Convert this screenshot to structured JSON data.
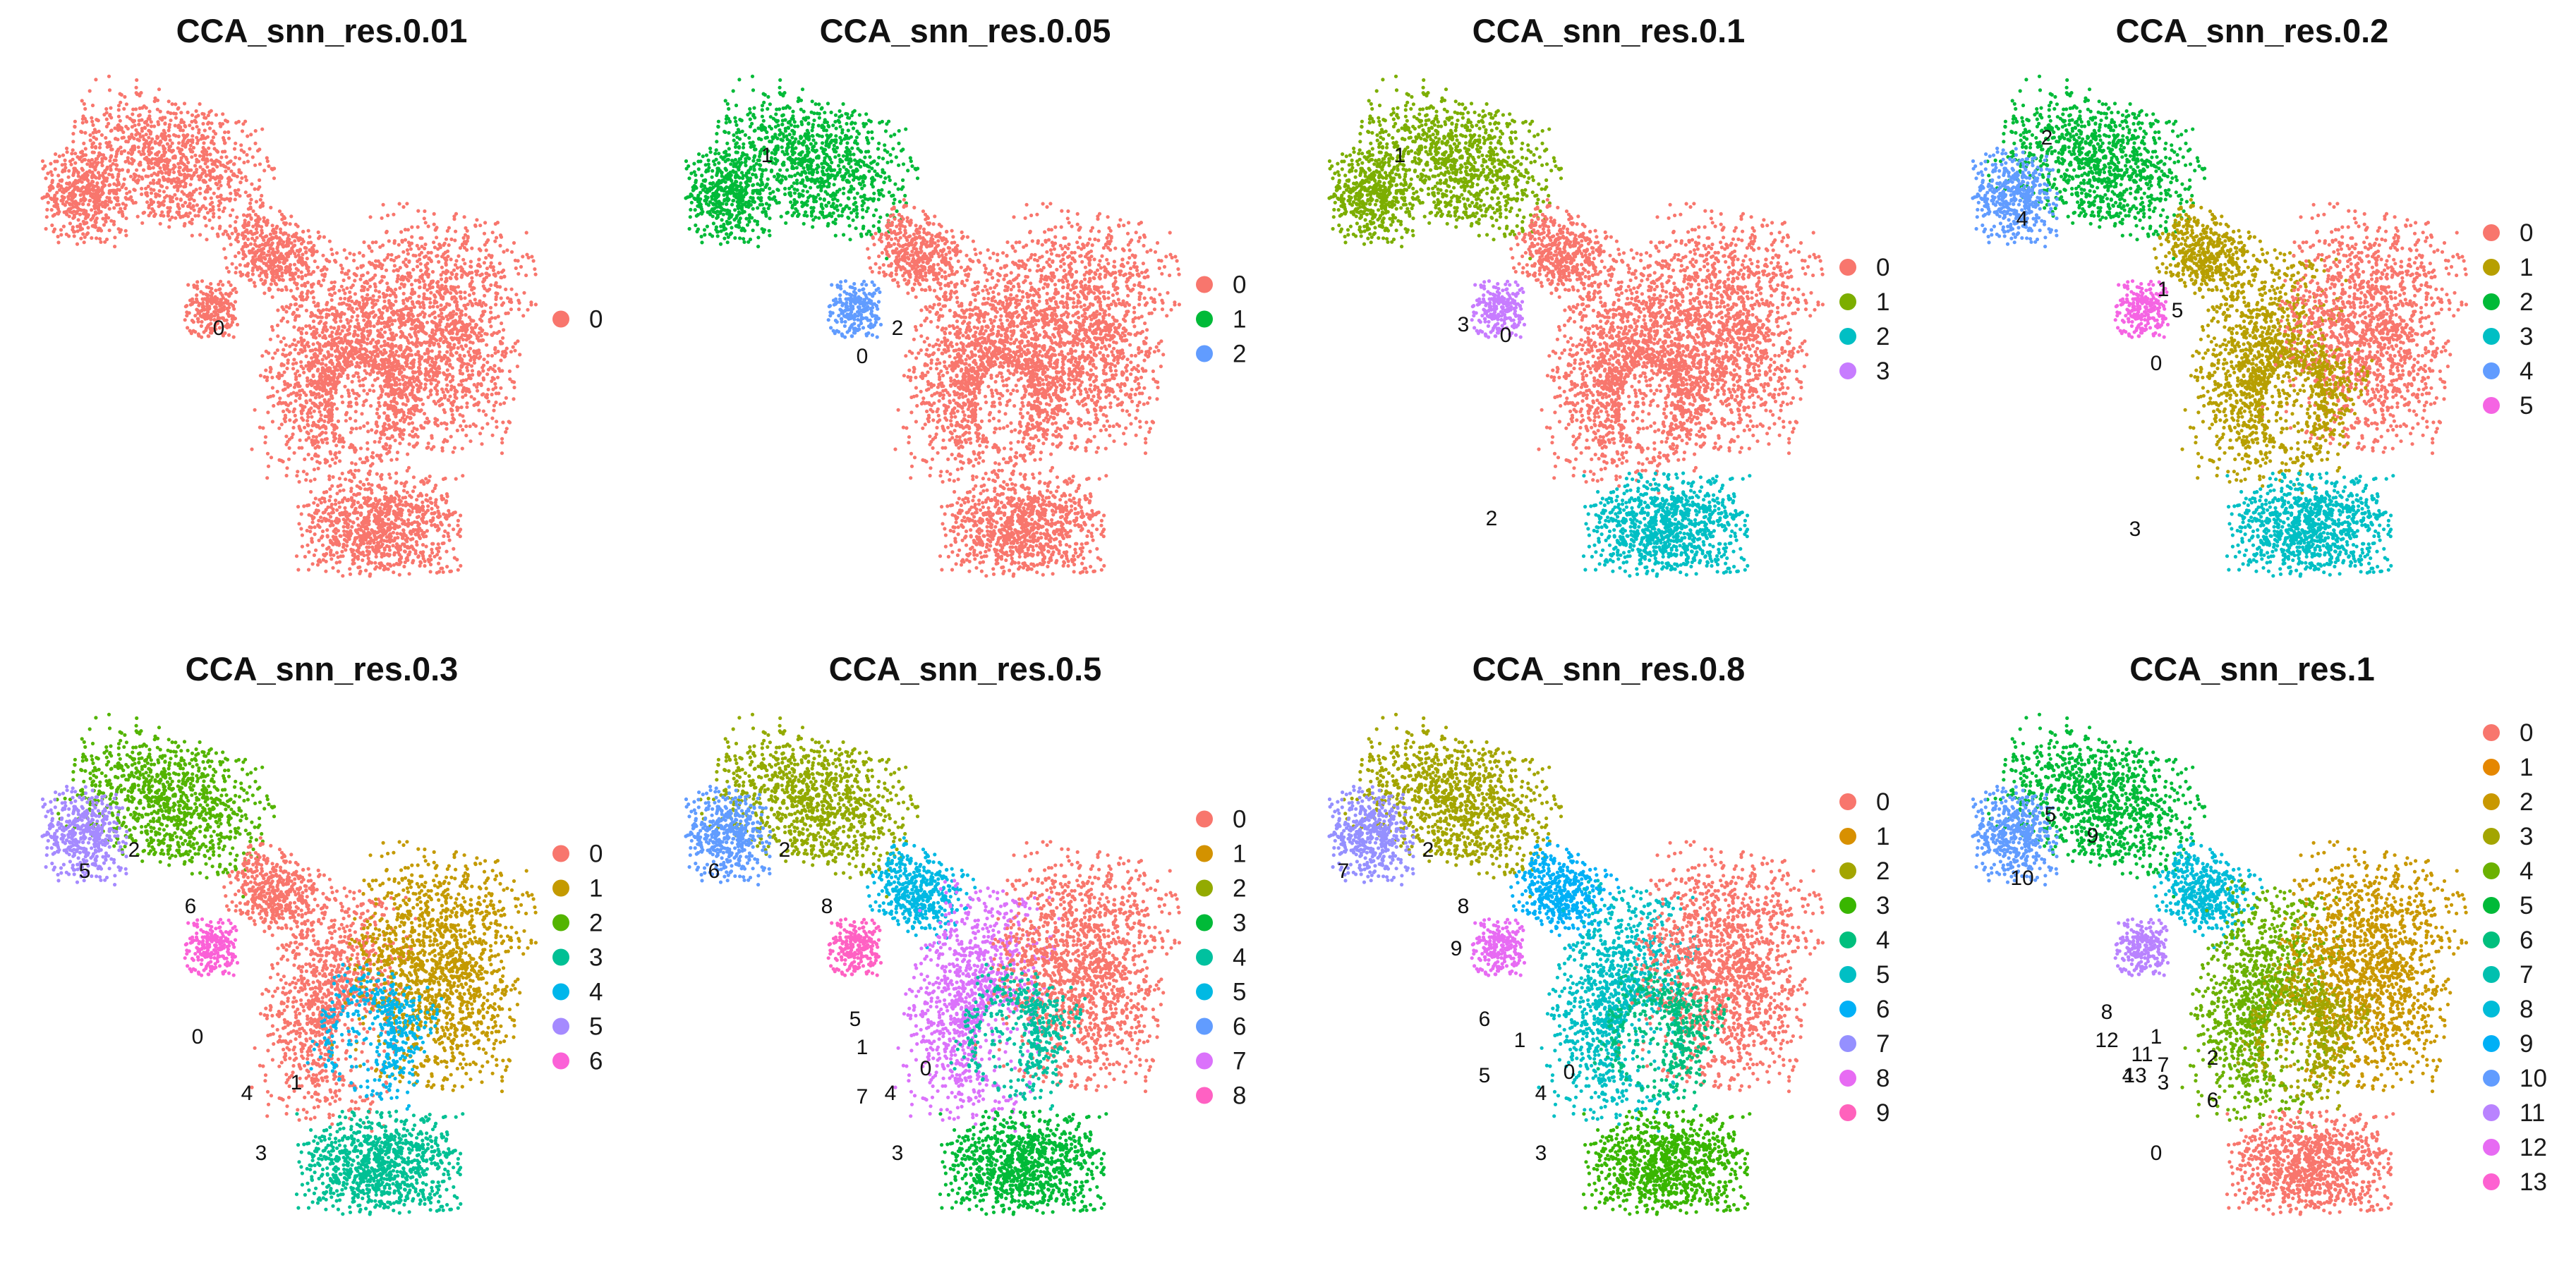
{
  "figure": {
    "layout": "2x4 grid of UMAP cluster plots"
  },
  "chart_data": [
    {
      "type": "scatter",
      "title": "CCA_snn_res.0.01",
      "legend": {
        "position": "right",
        "entries": [
          "0"
        ]
      },
      "cluster_labels": [
        "0"
      ],
      "colors": [
        "#F8766D"
      ]
    },
    {
      "type": "scatter",
      "title": "CCA_snn_res.0.05",
      "legend": {
        "position": "right",
        "entries": [
          "0",
          "1",
          "2"
        ]
      },
      "cluster_labels": [
        "0",
        "1",
        "2"
      ],
      "colors": [
        "#F8766D",
        "#00BA38",
        "#619CFF"
      ]
    },
    {
      "type": "scatter",
      "title": "CCA_snn_res.0.1",
      "legend": {
        "position": "right",
        "entries": [
          "0",
          "1",
          "2",
          "3"
        ]
      },
      "cluster_labels": [
        "0",
        "1",
        "2",
        "3"
      ],
      "colors": [
        "#F8766D",
        "#7CAE00",
        "#00BFC4",
        "#C77CFF"
      ]
    },
    {
      "type": "scatter",
      "title": "CCA_snn_res.0.2",
      "legend": {
        "position": "right",
        "entries": [
          "0",
          "1",
          "2",
          "3",
          "4",
          "5"
        ]
      },
      "cluster_labels": [
        "0",
        "1",
        "2",
        "3",
        "4",
        "5"
      ],
      "colors": [
        "#F8766D",
        "#B79F00",
        "#00BA38",
        "#00BFC4",
        "#619CFF",
        "#F564E3"
      ]
    },
    {
      "type": "scatter",
      "title": "CCA_snn_res.0.3",
      "legend": {
        "position": "right",
        "entries": [
          "0",
          "1",
          "2",
          "3",
          "4",
          "5",
          "6"
        ]
      },
      "cluster_labels": [
        "0",
        "1",
        "2",
        "3",
        "4",
        "5",
        "6"
      ],
      "colors": [
        "#F8766D",
        "#C49A00",
        "#53B400",
        "#00C094",
        "#00B6EB",
        "#A58AFF",
        "#FB61D7"
      ]
    },
    {
      "type": "scatter",
      "title": "CCA_snn_res.0.5",
      "legend": {
        "position": "right",
        "entries": [
          "0",
          "1",
          "2",
          "3",
          "4",
          "5",
          "6",
          "7",
          "8"
        ]
      },
      "cluster_labels": [
        "0",
        "1",
        "2",
        "3",
        "4",
        "5",
        "6",
        "7",
        "8"
      ],
      "colors": [
        "#F8766D",
        "#D39200",
        "#93AA00",
        "#00BA38",
        "#00C19F",
        "#00B9E3",
        "#619CFF",
        "#DB72FB",
        "#FF61C3"
      ]
    },
    {
      "type": "scatter",
      "title": "CCA_snn_res.0.8",
      "legend": {
        "position": "right",
        "entries": [
          "0",
          "1",
          "2",
          "3",
          "4",
          "5",
          "6",
          "7",
          "8",
          "9"
        ]
      },
      "cluster_labels": [
        "0",
        "1",
        "2",
        "3",
        "4",
        "5",
        "6",
        "7",
        "8",
        "9"
      ],
      "colors": [
        "#F8766D",
        "#D89000",
        "#A3A500",
        "#39B600",
        "#00BF7D",
        "#00BFC4",
        "#00B0F6",
        "#9590FF",
        "#E76BF3",
        "#FF62BC"
      ]
    },
    {
      "type": "scatter",
      "title": "CCA_snn_res.1",
      "legend": {
        "position": "right",
        "entries": [
          "0",
          "1",
          "2",
          "3",
          "4",
          "5",
          "6",
          "7",
          "8",
          "9",
          "10",
          "11",
          "12",
          "13"
        ]
      },
      "cluster_labels": [
        "0",
        "1",
        "2",
        "3",
        "4",
        "5",
        "6",
        "7",
        "8",
        "9",
        "10",
        "11",
        "12",
        "13"
      ],
      "colors": [
        "#F8766D",
        "#E58700",
        "#C99800",
        "#A3A500",
        "#6BB100",
        "#00BA38",
        "#00BF7D",
        "#00C0AF",
        "#00BCD8",
        "#00B0F6",
        "#619CFF",
        "#B983FF",
        "#E76BF3",
        "#FD61D1"
      ]
    }
  ]
}
